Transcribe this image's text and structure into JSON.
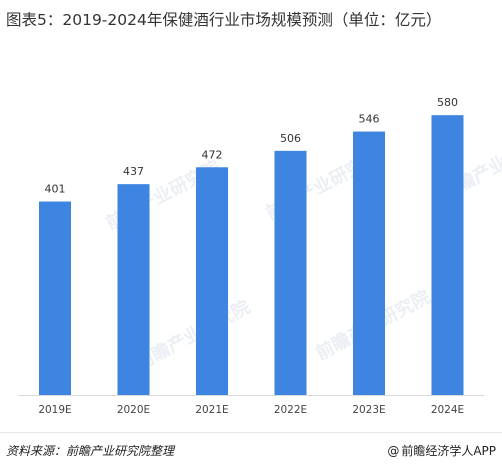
{
  "title": "图表5：2019-2024年保健酒行业市场规模预测（单位：亿元）",
  "chart_data": {
    "type": "bar",
    "categories": [
      "2019E",
      "2020E",
      "2021E",
      "2022E",
      "2023E",
      "2024E"
    ],
    "values": [
      401,
      437,
      472,
      506,
      546,
      580
    ],
    "title": "图表5：2019-2024年保健酒行业市场规模预测（单位：亿元）",
    "xlabel": "",
    "ylabel": "",
    "ylim": [
      0,
      600
    ],
    "grid": false,
    "legend": "none",
    "bar_color": "#3d85e0",
    "data_labels": true
  },
  "watermark": {
    "text": "前瞻产业研究院"
  },
  "footer": {
    "source": "资料来源：前瞻产业研究院整理",
    "credit": "前瞻经济学人APP",
    "credit_icon": "at-icon"
  }
}
